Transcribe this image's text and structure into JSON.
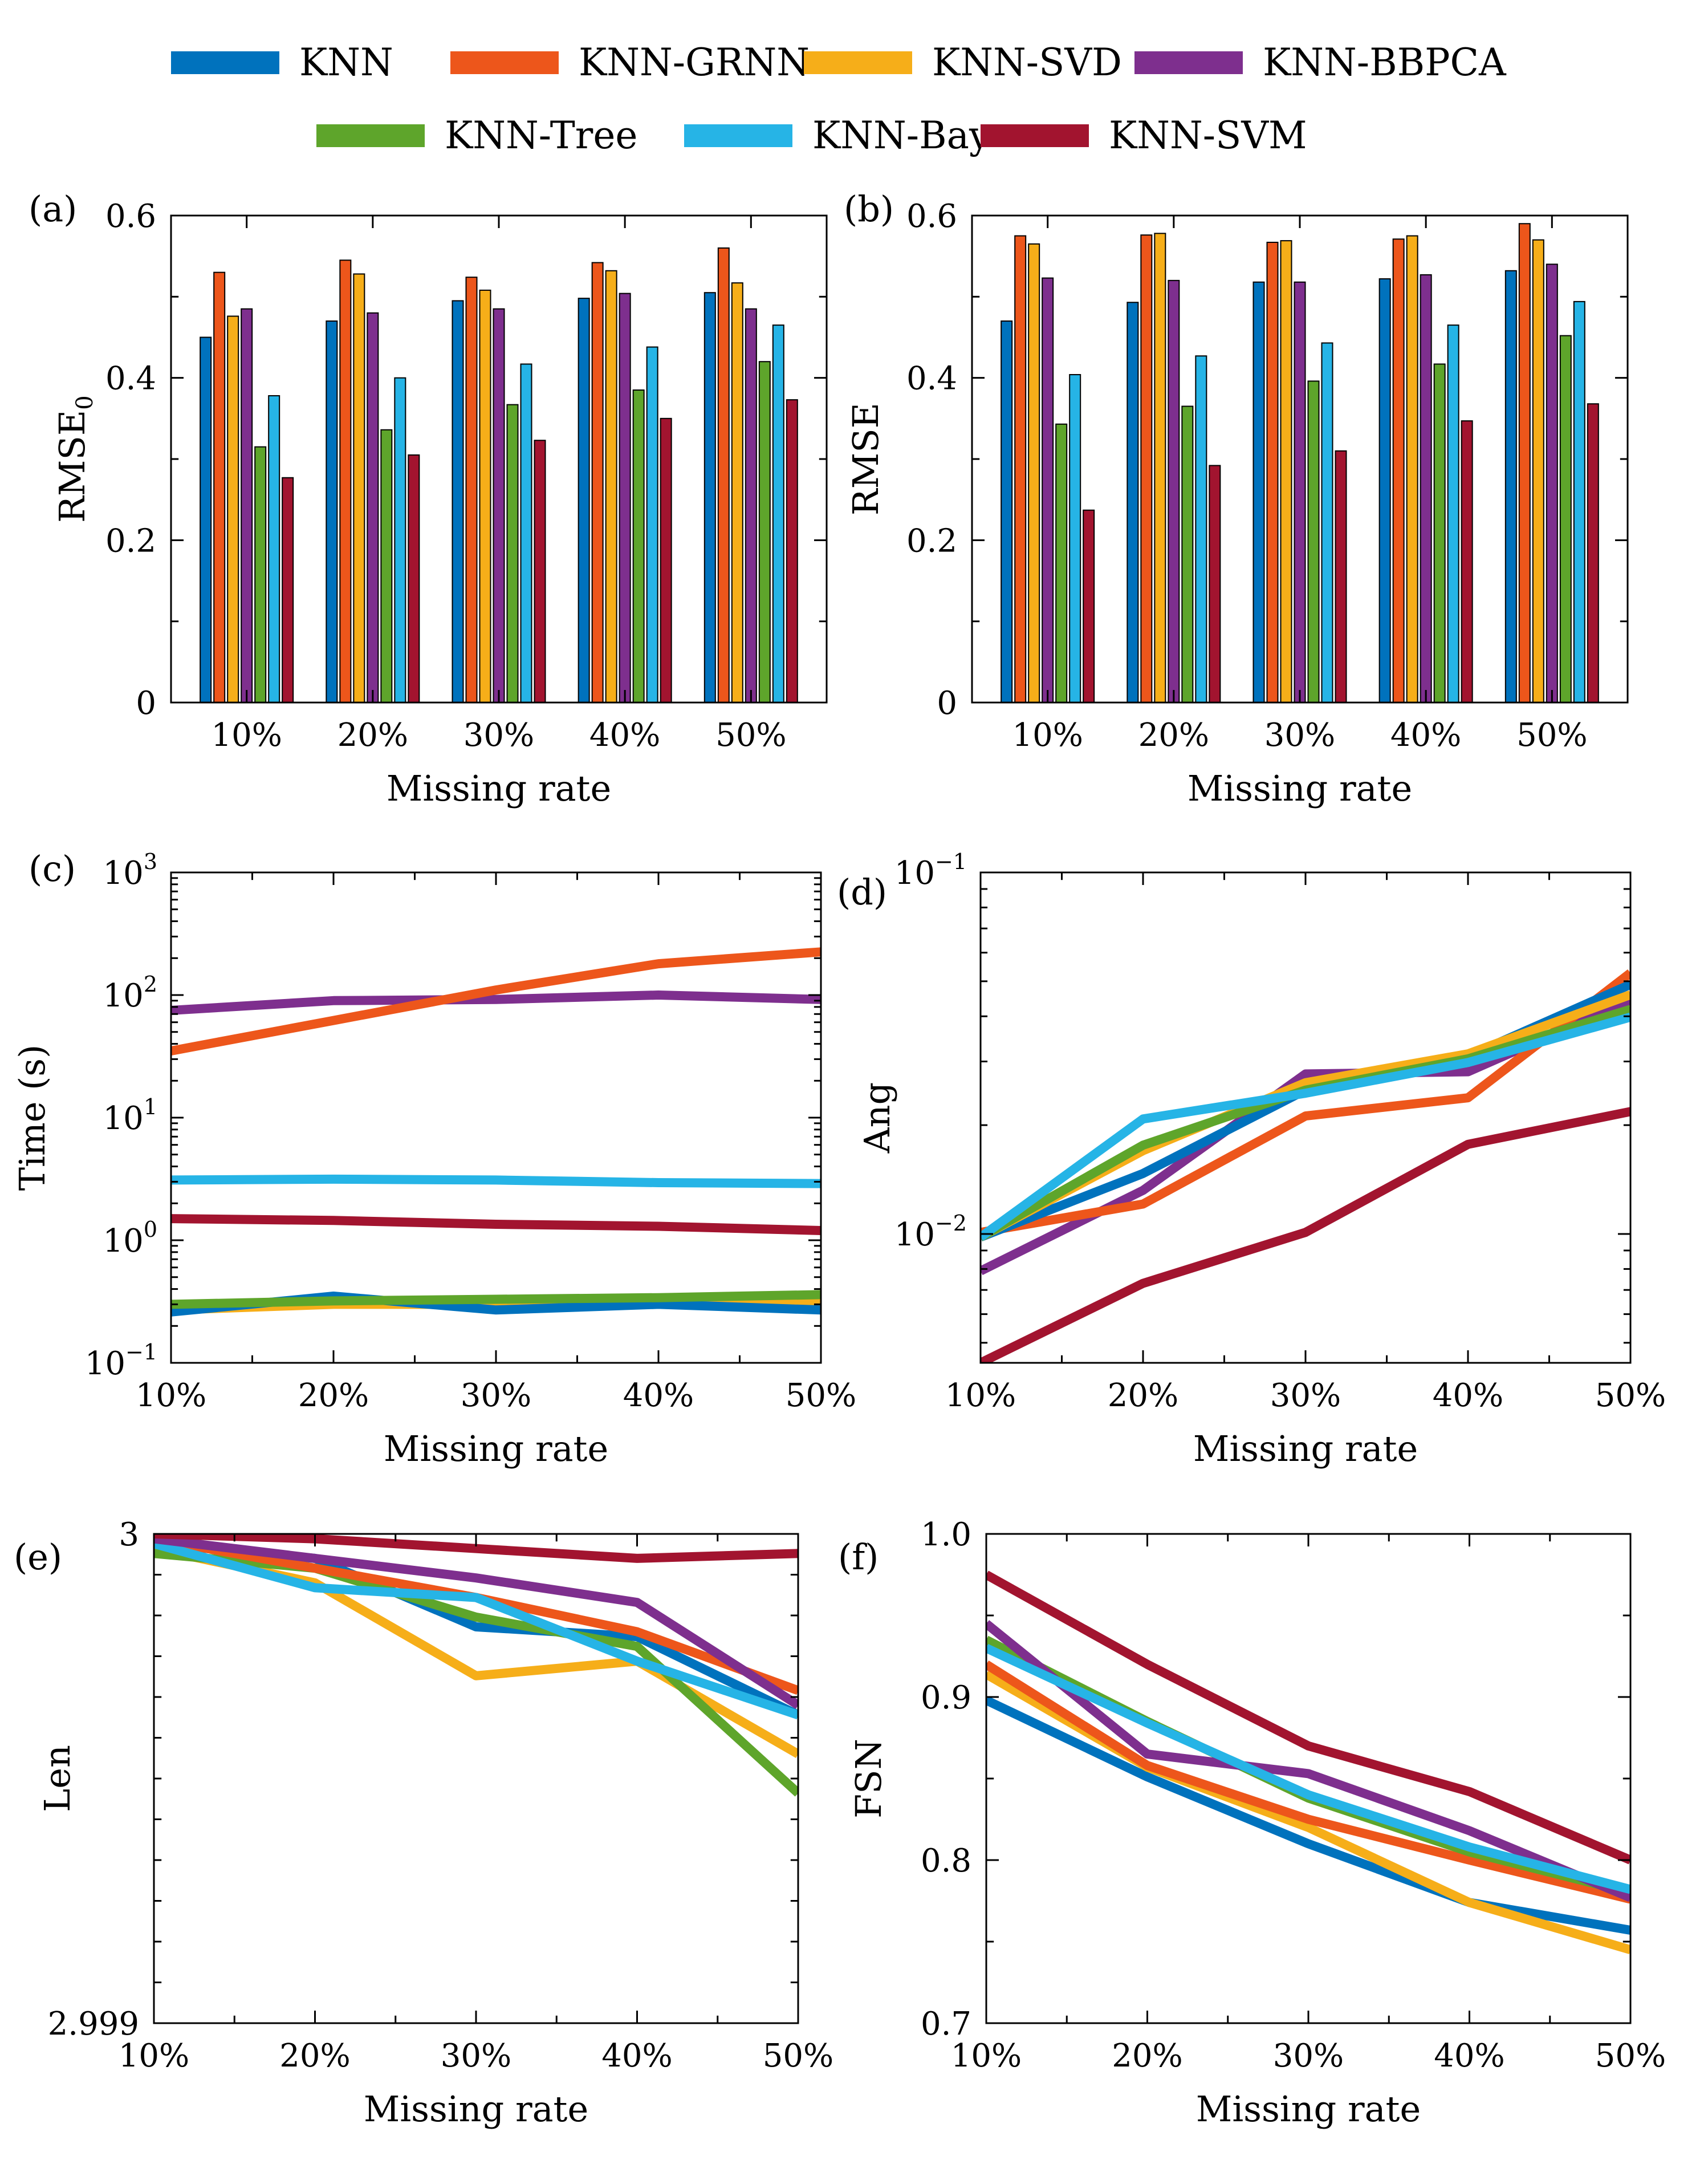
{
  "legend": [
    {
      "name": "KNN",
      "color": "#0072BD"
    },
    {
      "name": "KNN-GRNN",
      "color": "#ED561B"
    },
    {
      "name": "KNN-SVD",
      "color": "#F6AE19"
    },
    {
      "name": "KNN-BBPCA",
      "color": "#7E2F8E"
    },
    {
      "name": "KNN-Tree",
      "color": "#5EA52B"
    },
    {
      "name": "KNN-Bay",
      "color": "#26B4E6"
    },
    {
      "name": "KNN-SVM",
      "color": "#A2142F"
    }
  ],
  "chart_data": [
    {
      "id": "a",
      "letter": "(a)",
      "type": "bar",
      "xlabel": "Missing rate",
      "ylabel": "RMSE",
      "ylabel_sub": "0",
      "categories": [
        "10%",
        "20%",
        "30%",
        "40%",
        "50%"
      ],
      "ylim": [
        0,
        0.6
      ],
      "yticks": [
        {
          "v": 0,
          "label": "0"
        },
        {
          "v": 0.2,
          "label": "0.2"
        },
        {
          "v": 0.4,
          "label": "0.4"
        },
        {
          "v": 0.6,
          "label": "0.6"
        }
      ],
      "series": [
        {
          "name": "KNN",
          "values": [
            0.45,
            0.47,
            0.495,
            0.498,
            0.505
          ]
        },
        {
          "name": "KNN-GRNN",
          "values": [
            0.53,
            0.545,
            0.524,
            0.542,
            0.56
          ]
        },
        {
          "name": "KNN-SVD",
          "values": [
            0.476,
            0.528,
            0.508,
            0.532,
            0.517
          ]
        },
        {
          "name": "KNN-BBPCA",
          "values": [
            0.485,
            0.48,
            0.485,
            0.504,
            0.485
          ]
        },
        {
          "name": "KNN-Tree",
          "values": [
            0.315,
            0.336,
            0.367,
            0.385,
            0.42
          ]
        },
        {
          "name": "KNN-Bay",
          "values": [
            0.378,
            0.4,
            0.417,
            0.438,
            0.465
          ]
        },
        {
          "name": "KNN-SVM",
          "values": [
            0.277,
            0.305,
            0.323,
            0.35,
            0.373
          ]
        }
      ]
    },
    {
      "id": "b",
      "letter": "(b)",
      "type": "bar",
      "xlabel": "Missing rate",
      "ylabel": "RMSE",
      "categories": [
        "10%",
        "20%",
        "30%",
        "40%",
        "50%"
      ],
      "ylim": [
        0,
        0.6
      ],
      "yticks": [
        {
          "v": 0,
          "label": "0"
        },
        {
          "v": 0.2,
          "label": "0.2"
        },
        {
          "v": 0.4,
          "label": "0.4"
        },
        {
          "v": 0.6,
          "label": "0.6"
        }
      ],
      "series": [
        {
          "name": "KNN",
          "values": [
            0.47,
            0.493,
            0.518,
            0.522,
            0.532
          ]
        },
        {
          "name": "KNN-GRNN",
          "values": [
            0.575,
            0.576,
            0.567,
            0.571,
            0.59
          ]
        },
        {
          "name": "KNN-SVD",
          "values": [
            0.565,
            0.578,
            0.569,
            0.575,
            0.57
          ]
        },
        {
          "name": "KNN-BBPCA",
          "values": [
            0.523,
            0.52,
            0.518,
            0.527,
            0.54
          ]
        },
        {
          "name": "KNN-Tree",
          "values": [
            0.343,
            0.365,
            0.396,
            0.417,
            0.452
          ]
        },
        {
          "name": "KNN-Bay",
          "values": [
            0.404,
            0.427,
            0.443,
            0.465,
            0.494
          ]
        },
        {
          "name": "KNN-SVM",
          "values": [
            0.237,
            0.292,
            0.31,
            0.347,
            0.368
          ]
        }
      ]
    },
    {
      "id": "c",
      "letter": "(c)",
      "type": "line",
      "yscale": "log",
      "xlabel": "Missing rate",
      "ylabel": "Time (s)",
      "categories": [
        "10%",
        "20%",
        "30%",
        "40%",
        "50%"
      ],
      "ylim": [
        0.1,
        1000
      ],
      "yticks": [
        {
          "v": 0.1,
          "base": "10",
          "exp": "−1"
        },
        {
          "v": 1,
          "base": "10",
          "exp": "0"
        },
        {
          "v": 10,
          "base": "10",
          "exp": "1"
        },
        {
          "v": 100,
          "base": "10",
          "exp": "2"
        },
        {
          "v": 1000,
          "base": "10",
          "exp": "3"
        }
      ],
      "series": [
        {
          "name": "KNN-SVD",
          "values": [
            0.27,
            0.3,
            0.3,
            0.3,
            0.31
          ]
        },
        {
          "name": "KNN",
          "values": [
            0.26,
            0.35,
            0.27,
            0.3,
            0.27
          ]
        },
        {
          "name": "KNN-Tree",
          "values": [
            0.3,
            0.32,
            0.33,
            0.34,
            0.36
          ]
        },
        {
          "name": "KNN-SVM",
          "values": [
            1.5,
            1.45,
            1.35,
            1.3,
            1.2
          ]
        },
        {
          "name": "KNN-Bay",
          "values": [
            3.1,
            3.15,
            3.1,
            2.95,
            2.9
          ]
        },
        {
          "name": "KNN-BBPCA",
          "values": [
            75,
            90,
            92,
            100,
            92
          ]
        },
        {
          "name": "KNN-GRNN",
          "values": [
            35,
            62,
            110,
            180,
            225
          ]
        }
      ]
    },
    {
      "id": "d",
      "letter": "(d)",
      "type": "line",
      "yscale": "log",
      "xlabel": "Missing rate",
      "ylabel": "Ang",
      "categories": [
        "10%",
        "20%",
        "30%",
        "40%",
        "50%"
      ],
      "ylim": [
        0.0044,
        0.1
      ],
      "yticks": [
        {
          "v": 0.01,
          "base": "10",
          "exp": "−2"
        },
        {
          "v": 0.1,
          "base": "10",
          "exp": "−1"
        }
      ],
      "series": [
        {
          "name": "KNN-SVM",
          "values": [
            0.0044,
            0.0073,
            0.0101,
            0.0177,
            0.0218
          ]
        },
        {
          "name": "KNN-BBPCA",
          "values": [
            0.0079,
            0.0132,
            0.0277,
            0.0281,
            0.0443
          ]
        },
        {
          "name": "KNN-GRNN",
          "values": [
            0.0101,
            0.0121,
            0.0212,
            0.0238,
            0.0527
          ]
        },
        {
          "name": "KNN",
          "values": [
            0.0098,
            0.0147,
            0.025,
            0.031,
            0.049
          ]
        },
        {
          "name": "KNN-SVD",
          "values": [
            0.0098,
            0.017,
            0.0262,
            0.0315,
            0.0459
          ]
        },
        {
          "name": "KNN-Tree",
          "values": [
            0.0098,
            0.0176,
            0.025,
            0.0305,
            0.0418
          ]
        },
        {
          "name": "KNN-Bay",
          "values": [
            0.0098,
            0.0208,
            0.0245,
            0.0298,
            0.0398
          ]
        }
      ]
    },
    {
      "id": "e",
      "letter": "(e)",
      "type": "line",
      "xlabel": "Missing rate",
      "ylabel": "Len",
      "categories": [
        "10%",
        "20%",
        "30%",
        "40%",
        "50%"
      ],
      "ylim": [
        2.999,
        3.0
      ],
      "yticks": [
        {
          "v": 2.999,
          "label": "2.999"
        },
        {
          "v": 3.0,
          "label": "3"
        }
      ],
      "series": [
        {
          "name": "KNN",
          "values": [
            2.99998,
            2.99995,
            2.99981,
            2.99979,
            2.99963
          ]
        },
        {
          "name": "KNN-SVD",
          "values": [
            2.99997,
            2.9999,
            2.99971,
            2.99974,
            2.99955
          ]
        },
        {
          "name": "KNN-Tree",
          "values": [
            2.99996,
            2.99993,
            2.99983,
            2.99977,
            2.99947
          ]
        },
        {
          "name": "KNN-GRNN",
          "values": [
            2.99999,
            2.99993,
            2.99987,
            2.9998,
            2.99968
          ]
        },
        {
          "name": "KNN-Bay",
          "values": [
            2.99998,
            2.99989,
            2.99987,
            2.99974,
            2.99963
          ]
        },
        {
          "name": "KNN-BBPCA",
          "values": [
            2.99999,
            2.99995,
            2.99991,
            2.99986,
            2.99965
          ]
        },
        {
          "name": "KNN-SVM",
          "values": [
            3.0,
            2.99999,
            2.99997,
            2.99995,
            2.99996
          ]
        }
      ]
    },
    {
      "id": "f",
      "letter": "(f)",
      "type": "line",
      "xlabel": "Missing rate",
      "ylabel": "FSN",
      "categories": [
        "10%",
        "20%",
        "30%",
        "40%",
        "50%"
      ],
      "ylim": [
        0.7,
        1.0
      ],
      "yticks": [
        {
          "v": 0.7,
          "label": "0.7"
        },
        {
          "v": 0.8,
          "label": "0.8"
        },
        {
          "v": 0.9,
          "label": "0.9"
        },
        {
          "v": 1.0,
          "label": "1.0"
        }
      ],
      "series": [
        {
          "name": "KNN",
          "values": [
            0.898,
            0.851,
            0.81,
            0.774,
            0.757
          ]
        },
        {
          "name": "KNN-SVD",
          "values": [
            0.914,
            0.857,
            0.82,
            0.774,
            0.745
          ]
        },
        {
          "name": "KNN-GRNN",
          "values": [
            0.92,
            0.858,
            0.825,
            0.8,
            0.776
          ]
        },
        {
          "name": "KNN-Tree",
          "values": [
            0.935,
            0.885,
            0.838,
            0.805,
            0.78
          ]
        },
        {
          "name": "KNN-BBPCA",
          "values": [
            0.945,
            0.865,
            0.853,
            0.818,
            0.777
          ]
        },
        {
          "name": "KNN-Bay",
          "values": [
            0.93,
            0.884,
            0.84,
            0.808,
            0.782
          ]
        },
        {
          "name": "KNN-SVM",
          "values": [
            0.975,
            0.92,
            0.87,
            0.842,
            0.8
          ]
        }
      ]
    }
  ]
}
